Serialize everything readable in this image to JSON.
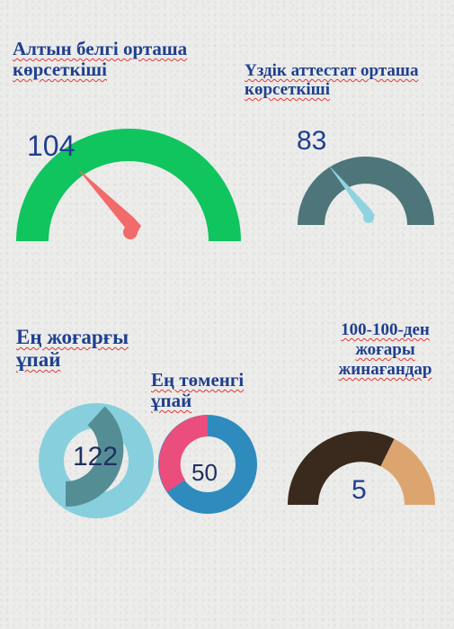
{
  "panels": {
    "gold_avg": {
      "title_lines": [
        "Алтын белгі орташа",
        "көрсеткіші"
      ],
      "value": "104",
      "arc_color": "#10c45e",
      "needle_color": "#f26b6b"
    },
    "excellent_avg": {
      "title_lines": [
        "Үздік аттестат орташа",
        "көрсеткіші"
      ],
      "value": "83",
      "arc_color": "#4d757a",
      "needle_color": "#8fd3e0"
    },
    "highest_score": {
      "title_lines": [
        "Ең жоғарғы",
        "ұпай"
      ],
      "value": "122",
      "ring_colors": [
        "#558d95",
        "#87cfdc"
      ]
    },
    "lowest_score": {
      "title_lines": [
        "Ең төменгі",
        "ұпай"
      ],
      "value": "50",
      "ring_colors": [
        "#2f8bbd",
        "#ea4e7d"
      ]
    },
    "hundred_collectors": {
      "title_lines": [
        "100-100-ден",
        "жоғары",
        "жинағандар"
      ],
      "value": "5",
      "arc_colors": [
        "#3a2a1e",
        "#dca46e"
      ]
    }
  }
}
